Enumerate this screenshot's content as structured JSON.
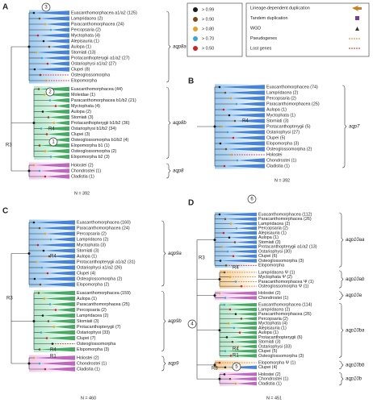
{
  "legend": {
    "support": [
      {
        "label": "> 0.99",
        "color": "#1a1a1a"
      },
      {
        "label": "> 0.90",
        "color": "#7a4a1a"
      },
      {
        "label": "> 0.80",
        "color": "#e8a317"
      },
      {
        "label": "> 0.70",
        "color": "#3aa6d8"
      },
      {
        "label": "> 0.50",
        "color": "#d42020"
      }
    ],
    "events": [
      "Lineage-dependent duplication",
      "Tandem duplication",
      "WGD",
      "Pseudogenes",
      "Lost genes"
    ]
  },
  "panels": [
    {
      "letter": "A",
      "n": "N = 392",
      "annotations": [
        "3",
        "2",
        "1",
        "R3",
        "R4"
      ],
      "groups": [
        {
          "gene": "aqp8a",
          "color": "#8fc3ee",
          "labels": [
            {
              "text": "Euacanthomorphacea a1/a2 (125)"
            },
            {
              "text": "Lampridacea (2)"
            },
            {
              "text": "Paracanthomorphacea (24)"
            },
            {
              "text": "Percopsaria (2)"
            },
            {
              "text": "Myctophata (4)"
            },
            {
              "text": "Alepisauria (1)"
            },
            {
              "text": "Aulopa (1)"
            },
            {
              "text": "Stomiati (13)"
            },
            {
              "text": "Protacanthopterygii a1/a2 (27)"
            },
            {
              "text": "Ostariophysi a1/a2 (27)"
            },
            {
              "text": "Clupei (8)"
            },
            {
              "text": "Osteoglossomorpha",
              "color": "#d42020"
            },
            {
              "text": "Elopomorpha",
              "color": "#d42020"
            }
          ]
        },
        {
          "gene": "aqp8b",
          "color": "#a9e6c3",
          "labels": [
            {
              "text": "Euacanthomorphacea (44)"
            },
            {
              "text": "Moleidae (1)"
            },
            {
              "text": "Paracanthomorphacea b1/b2 (21)"
            },
            {
              "text": "Myctophata (4)"
            },
            {
              "text": "Aulopa (2)"
            },
            {
              "text": "Stomiati (3)"
            },
            {
              "text": "Protacanthopterygii b1/b2 (36)"
            },
            {
              "text": "Ostariophysi b1/b2 (34)"
            },
            {
              "text": "Clupei (3)"
            },
            {
              "text": "Osteoglossomorpha b1/b2 (4)"
            },
            {
              "text": "Elopomorpha b1 (1)"
            },
            {
              "text": "Osteoglossomorpha (2)"
            },
            {
              "text": "Elopomorpha b2 (3)"
            }
          ]
        },
        {
          "gene": "aqp8",
          "color": "#f0c2ec",
          "labels": [
            {
              "text": "Holostei (2)"
            },
            {
              "text": "Chondrostei (1)"
            },
            {
              "text": "Cladistia (1)"
            }
          ]
        }
      ]
    },
    {
      "letter": "B",
      "n": "N = 392",
      "annotations": [
        "R4"
      ],
      "groups": [
        {
          "gene": "aqp7",
          "color": "#8fc3ee",
          "labels": [
            {
              "text": "Euacanthomorphacea (74)"
            },
            {
              "text": "Lampridacea (2)"
            },
            {
              "text": "Percopsaria (2)"
            },
            {
              "text": "Paracanthomorphacea (25)"
            },
            {
              "text": "Aulopa (1)"
            },
            {
              "text": "Myctophata (1)"
            },
            {
              "text": "Stomiati (3)"
            },
            {
              "text": "Protacanthopterygii (5)"
            },
            {
              "text": "Ostariophysi (27)"
            },
            {
              "text": "Clupei (5)"
            },
            {
              "text": "Elopomorpha (3)"
            },
            {
              "text": "Osteoglossomorpha (2)"
            },
            {
              "text": "Holostei",
              "color": "#d42020"
            },
            {
              "text": "Chondrostei (1)"
            },
            {
              "text": "Cladistia (1)"
            }
          ]
        }
      ]
    },
    {
      "letter": "C",
      "n": "N = 460",
      "annotations": [
        "R3",
        "R4",
        "R4",
        "R1"
      ],
      "groups": [
        {
          "gene": "aqp9a",
          "color": "#8fc3ee",
          "labels": [
            {
              "text": "Euacanthomorphacea (160)"
            },
            {
              "text": "Paracanthomorphacea (24)"
            },
            {
              "text": "Percopsaria (2)"
            },
            {
              "text": "Lampridacea (2)"
            },
            {
              "text": "Myctophata (3)"
            },
            {
              "text": "Stomiati (3)"
            },
            {
              "text": "Aulopa (1)"
            },
            {
              "text": "Protacanthopterygii a1/a2 (31)"
            },
            {
              "text": "Ostariophysi a1/a2 (26)"
            },
            {
              "text": "Clupei (4)"
            },
            {
              "text": "Osteoglossomorpha (2)"
            },
            {
              "text": "Elopomorpha (2)"
            }
          ]
        },
        {
          "gene": "aqp9b",
          "color": "#a9e6c3",
          "labels": [
            {
              "text": "Euacanthomorphacea (159)"
            },
            {
              "text": "Aulopa (1)"
            },
            {
              "text": "Paracanthomorphacea (25)"
            },
            {
              "text": "Percopsaria (2)"
            },
            {
              "text": "Lampridacea (2)"
            },
            {
              "text": "Stomiati (3)"
            },
            {
              "text": "Protacanthopterygii (7)"
            },
            {
              "text": "Ostariophysi (33)"
            },
            {
              "text": "Clupei (7)"
            },
            {
              "text": "Osteoglossomorpha",
              "color": "#d42020"
            },
            {
              "text": "Elopomorpha (3)"
            }
          ]
        },
        {
          "gene": "aqp9",
          "color": "#f0c2ec",
          "labels": [
            {
              "text": "Holostei (2)"
            },
            {
              "text": "Chondrostei (1)"
            },
            {
              "text": "Cladistia (1)"
            }
          ]
        }
      ]
    },
    {
      "letter": "D",
      "n": "N = 451",
      "annotations": [
        "6",
        "4",
        "5",
        "R3",
        "R4",
        "R4",
        "R1",
        "R3"
      ],
      "groups": [
        {
          "gene": "aqp10aa",
          "color": "#8fc3ee",
          "labels": [
            {
              "text": "Euacanthomorphacea (112)"
            },
            {
              "text": "Paracanthomorphacea (26)"
            },
            {
              "text": "Lampridacea (2)"
            },
            {
              "text": "Percopsaria (2)"
            },
            {
              "text": "Alepisauria (1)"
            },
            {
              "text": "Aulopa (1)"
            },
            {
              "text": "Stomiati (3)"
            },
            {
              "text": "Protacanthopterygii a1/a2 (13)"
            },
            {
              "text": "Ostariophysi (30)"
            },
            {
              "text": "Clupei (6)"
            },
            {
              "text": "Osteoglossomorpha (3)"
            },
            {
              "text": "Elopomorpha",
              "color": "#d42020"
            }
          ]
        },
        {
          "gene": "aqp10ab",
          "color": "#f3c98a",
          "labels": [
            {
              "text": "Lampridacea Ψ (1)",
              "color": "#e07a20"
            },
            {
              "text": "Myctophata Ψ (2)",
              "color": "#e07a20"
            },
            {
              "text": "Paracanthomorphacea Ψ (1)",
              "color": "#e07a20"
            },
            {
              "text": "Osteoglossomorpha Ψ (1)",
              "color": "#e07a20"
            }
          ]
        },
        {
          "gene": "aqp10a",
          "color": "#f0c2ec",
          "labels": [
            {
              "text": "Holostei (2)"
            },
            {
              "text": "Chondrostei (1)"
            }
          ]
        },
        {
          "gene": "aqp10ba",
          "color": "#a9e6c3",
          "labels": [
            {
              "text": "Euacanthomorphacea (114)"
            },
            {
              "text": "Lampridacea (2)"
            },
            {
              "text": "Paracanthomorphacea (26)"
            },
            {
              "text": "Percopsaria (2)"
            },
            {
              "text": "Myctophata (4)"
            },
            {
              "text": "Alepisauria (1)"
            },
            {
              "text": "Aulopa (1)"
            },
            {
              "text": "Protacanthopterygii (6)"
            },
            {
              "text": "Stomiati (3)"
            },
            {
              "text": "Ostariophysi (33)"
            },
            {
              "text": "Clupei (5)"
            },
            {
              "text": "Osteoglossomorpha (3)"
            }
          ]
        },
        {
          "gene": "aqp10bb",
          "color": "#f3c98a",
          "labels": [
            {
              "text": "Elopomorpha Ψ (1)",
              "color": "#e07a20"
            },
            {
              "text": "Clupei (4)"
            }
          ]
        },
        {
          "gene": "aqp10b",
          "color": "#f0c2ec",
          "labels": [
            {
              "text": "Holostei (2)"
            },
            {
              "text": "Chondrostei (1)"
            },
            {
              "text": "Cladistia (1)"
            }
          ]
        }
      ]
    }
  ]
}
